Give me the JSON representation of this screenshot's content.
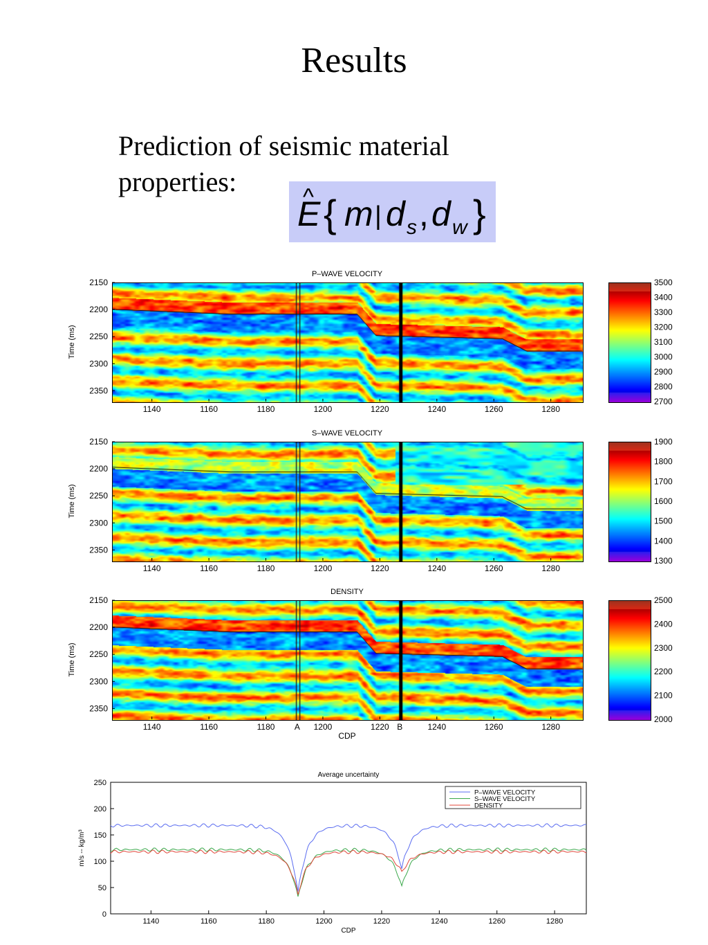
{
  "title": "Results",
  "subtitle_line1": "Prediction of seismic material",
  "subtitle_line2": "properties:",
  "formula": {
    "E": "E",
    "hat": "^",
    "lbrace": "{",
    "m": "m",
    "bar": "|",
    "d": "d",
    "s": "s",
    "comma": ",",
    "d2": "d",
    "w": "w",
    "rbrace": "}"
  },
  "colors": {
    "formula_bg": "#c8ccf8",
    "p_wave_line": "#5a6cf0",
    "s_wave_line": "#3aa84a",
    "density_line": "#e0463a"
  },
  "chart_data": [
    {
      "type": "heatmap",
      "title": "P–WAVE VELOCITY",
      "ylabel": "Time (ms)",
      "xlabel": "",
      "x_ticks": [
        "1140",
        "1160",
        "1180",
        "1200",
        "1220",
        "1240",
        "1260",
        "1280"
      ],
      "y_ticks": [
        "2150",
        "2200",
        "2250",
        "2300",
        "2350"
      ],
      "xlim": [
        1126,
        1291
      ],
      "ylim": [
        2150,
        2370
      ],
      "colorbar_ticks": [
        "3500",
        "3400",
        "3300",
        "3200",
        "3100",
        "3000",
        "2900",
        "2800",
        "2700"
      ],
      "colorbar_range": [
        2700,
        3500
      ]
    },
    {
      "type": "heatmap",
      "title": "S–WAVE VELOCITY",
      "ylabel": "Time (ms)",
      "xlabel": "",
      "x_ticks": [
        "1140",
        "1160",
        "1180",
        "1200",
        "1220",
        "1240",
        "1260",
        "1280"
      ],
      "y_ticks": [
        "2150",
        "2200",
        "2250",
        "2300",
        "2350"
      ],
      "xlim": [
        1126,
        1291
      ],
      "ylim": [
        2150,
        2370
      ],
      "colorbar_ticks": [
        "1900",
        "1800",
        "1700",
        "1600",
        "1500",
        "1400",
        "1300"
      ],
      "colorbar_range": [
        1300,
        1900
      ]
    },
    {
      "type": "heatmap",
      "title": "DENSITY",
      "ylabel": "Time (ms)",
      "xlabel": "CDP",
      "x_ticks": [
        "1140",
        "1160",
        "1180",
        "1200",
        "1220",
        "1240",
        "1260",
        "1280"
      ],
      "x_markers": [
        "A",
        "B"
      ],
      "y_ticks": [
        "2150",
        "2200",
        "2250",
        "2300",
        "2350"
      ],
      "xlim": [
        1126,
        1291
      ],
      "ylim": [
        2150,
        2370
      ],
      "colorbar_ticks": [
        "2500",
        "2400",
        "2300",
        "2200",
        "2100",
        "2000"
      ],
      "colorbar_range": [
        2000,
        2500
      ]
    },
    {
      "type": "line",
      "title": "Average uncertainty",
      "xlabel": "CDP",
      "ylabel": "m/s -- kg/m³",
      "xlim": [
        1126,
        1291
      ],
      "ylim": [
        0,
        250
      ],
      "x_ticks": [
        "1140",
        "1160",
        "1180",
        "1200",
        "1220",
        "1240",
        "1260",
        "1280"
      ],
      "y_ticks": [
        "0",
        "50",
        "100",
        "150",
        "200",
        "250"
      ],
      "legend_position": "top-right",
      "series": [
        {
          "name": "P–WAVE VELOCITY",
          "baseline": 168,
          "minima": [
            [
              1191,
              40
            ],
            [
              1227,
              85
            ]
          ]
        },
        {
          "name": "S–WAVE VELOCITY",
          "baseline": 122,
          "minima": [
            [
              1191,
              30
            ],
            [
              1227,
              50
            ]
          ]
        },
        {
          "name": "DENSITY",
          "baseline": 118,
          "minima": [
            [
              1191,
              36
            ],
            [
              1227,
              78
            ]
          ]
        }
      ]
    }
  ]
}
